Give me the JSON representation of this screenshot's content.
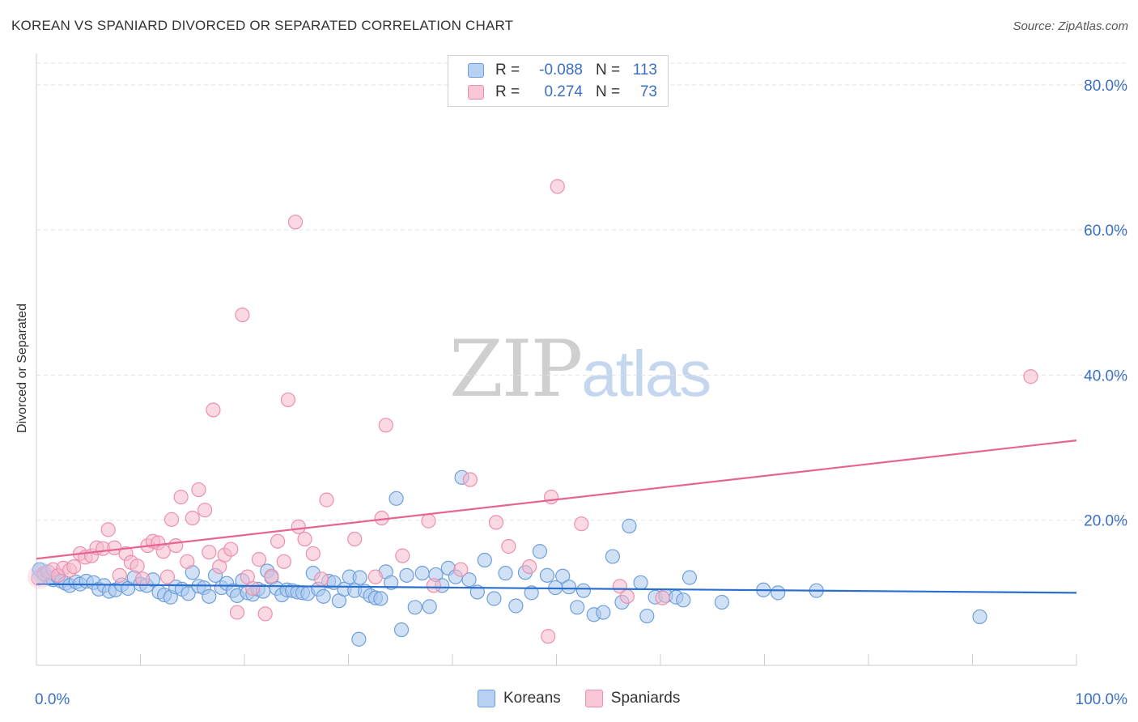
{
  "title": "KOREAN VS SPANIARD DIVORCED OR SEPARATED CORRELATION CHART",
  "source": "Source: ZipAtlas.com",
  "watermark": {
    "part1": "ZIP",
    "part2": "atlas"
  },
  "legend": {
    "rows": [
      {
        "r_label": "R =",
        "r_value": "-0.088",
        "n_label": "N =",
        "n_value": "113"
      },
      {
        "r_label": "R =",
        "r_value": "0.274",
        "n_label": "N =",
        "n_value": "73"
      }
    ]
  },
  "bottom_legend": [
    "Koreans",
    "Spaniards"
  ],
  "colors": {
    "blue_fill": "#a9c8ef",
    "blue_stroke": "#6f9fdb",
    "blue_line": "#2a6fd0",
    "pink_fill": "#f6b9cc",
    "pink_stroke": "#ec8fae",
    "pink_line": "#e56590",
    "axis_label": "#3a6fc4",
    "grid": "#e3e3e3"
  },
  "chart_data": {
    "type": "scatter",
    "title": "KOREAN VS SPANIARD DIVORCED OR SEPARATED CORRELATION CHART",
    "xlabel": "",
    "ylabel": "Divorced or Separated",
    "xlim": [
      0,
      100
    ],
    "ylim": [
      0,
      83
    ],
    "x_tick_labels": [
      "0.0%",
      "100.0%"
    ],
    "y_ticks": [
      20,
      40,
      60,
      80
    ],
    "y_tick_labels": [
      "20.0%",
      "40.0%",
      "60.0%",
      "80.0%"
    ],
    "grid": true,
    "legend_position": "top-center",
    "series": [
      {
        "name": "Koreans",
        "r": -0.088,
        "n": 113,
        "trend": [
          [
            0,
            11.2
          ],
          [
            100,
            10.0
          ]
        ],
        "points": [
          [
            0.3,
            13.2
          ],
          [
            0.8,
            12.5
          ],
          [
            1.2,
            12.0
          ],
          [
            1.6,
            11.8
          ],
          [
            2.0,
            12.3
          ],
          [
            2.4,
            11.6
          ],
          [
            2.8,
            11.3
          ],
          [
            3.2,
            11.0
          ],
          [
            3.8,
            11.5
          ],
          [
            4.2,
            11.2
          ],
          [
            4.8,
            11.6
          ],
          [
            5.5,
            11.4
          ],
          [
            6.0,
            10.5
          ],
          [
            6.5,
            11.0
          ],
          [
            7.0,
            10.2
          ],
          [
            7.6,
            10.4
          ],
          [
            8.2,
            11.1
          ],
          [
            8.8,
            10.6
          ],
          [
            9.4,
            12.1
          ],
          [
            10.0,
            11.2
          ],
          [
            10.6,
            11.0
          ],
          [
            11.2,
            11.8
          ],
          [
            11.8,
            10.1
          ],
          [
            12.3,
            9.7
          ],
          [
            12.9,
            9.4
          ],
          [
            13.4,
            10.8
          ],
          [
            14.0,
            10.5
          ],
          [
            14.6,
            9.9
          ],
          [
            15.0,
            12.8
          ],
          [
            15.6,
            10.9
          ],
          [
            16.1,
            10.7
          ],
          [
            16.6,
            9.5
          ],
          [
            17.2,
            12.4
          ],
          [
            17.8,
            10.7
          ],
          [
            18.3,
            11.3
          ],
          [
            18.9,
            10.3
          ],
          [
            19.3,
            9.6
          ],
          [
            19.8,
            11.7
          ],
          [
            20.3,
            10.0
          ],
          [
            20.8,
            9.8
          ],
          [
            21.3,
            10.5
          ],
          [
            21.8,
            10.2
          ],
          [
            22.2,
            13.0
          ],
          [
            22.6,
            12.1
          ],
          [
            23.1,
            10.6
          ],
          [
            23.6,
            9.7
          ],
          [
            24.1,
            10.4
          ],
          [
            24.6,
            10.3
          ],
          [
            25.1,
            10.1
          ],
          [
            25.6,
            10.0
          ],
          [
            26.1,
            9.9
          ],
          [
            26.6,
            12.7
          ],
          [
            27.1,
            10.5
          ],
          [
            27.6,
            9.5
          ],
          [
            28.1,
            11.6
          ],
          [
            28.6,
            11.4
          ],
          [
            29.1,
            8.9
          ],
          [
            29.6,
            10.5
          ],
          [
            30.1,
            12.2
          ],
          [
            30.6,
            10.3
          ],
          [
            31.1,
            12.1
          ],
          [
            31.6,
            10.2
          ],
          [
            32.1,
            9.6
          ],
          [
            32.6,
            9.3
          ],
          [
            33.1,
            9.2
          ],
          [
            33.6,
            12.9
          ],
          [
            34.1,
            11.4
          ],
          [
            34.6,
            23.0
          ],
          [
            35.1,
            4.9
          ],
          [
            35.6,
            12.4
          ],
          [
            36.4,
            8.0
          ],
          [
            37.1,
            12.7
          ],
          [
            37.8,
            8.1
          ],
          [
            38.4,
            12.5
          ],
          [
            39.0,
            11.0
          ],
          [
            39.6,
            13.4
          ],
          [
            40.3,
            12.2
          ],
          [
            40.9,
            25.9
          ],
          [
            41.6,
            11.8
          ],
          [
            42.4,
            10.1
          ],
          [
            43.1,
            14.5
          ],
          [
            44.0,
            9.2
          ],
          [
            45.1,
            12.7
          ],
          [
            46.1,
            8.2
          ],
          [
            47.0,
            12.8
          ],
          [
            47.6,
            10.0
          ],
          [
            48.4,
            15.7
          ],
          [
            49.1,
            12.4
          ],
          [
            49.9,
            10.7
          ],
          [
            50.6,
            12.3
          ],
          [
            51.2,
            10.8
          ],
          [
            52.0,
            8.0
          ],
          [
            52.6,
            10.3
          ],
          [
            53.6,
            7.0
          ],
          [
            54.5,
            7.3
          ],
          [
            55.4,
            15.0
          ],
          [
            56.3,
            8.7
          ],
          [
            57.0,
            19.2
          ],
          [
            58.1,
            11.4
          ],
          [
            58.7,
            6.8
          ],
          [
            59.5,
            9.4
          ],
          [
            60.5,
            9.6
          ],
          [
            61.5,
            9.4
          ],
          [
            62.2,
            9.0
          ],
          [
            62.8,
            12.1
          ],
          [
            65.9,
            8.7
          ],
          [
            69.9,
            10.4
          ],
          [
            71.3,
            10.0
          ],
          [
            75.0,
            10.3
          ],
          [
            90.7,
            6.7
          ],
          [
            31.0,
            3.6
          ]
        ]
      },
      {
        "name": "Spaniards",
        "r": 0.274,
        "n": 73,
        "trend": [
          [
            0,
            14.7
          ],
          [
            100,
            31.0
          ]
        ],
        "points": [
          [
            0.2,
            12.0
          ],
          [
            0.7,
            12.6
          ],
          [
            1.1,
            12.9
          ],
          [
            1.6,
            13.2
          ],
          [
            2.1,
            12.4
          ],
          [
            2.6,
            13.4
          ],
          [
            3.2,
            13.1
          ],
          [
            3.6,
            13.6
          ],
          [
            4.2,
            15.4
          ],
          [
            4.7,
            14.9
          ],
          [
            5.3,
            15.1
          ],
          [
            5.8,
            16.2
          ],
          [
            6.4,
            16.1
          ],
          [
            6.9,
            18.7
          ],
          [
            7.5,
            16.2
          ],
          [
            8.0,
            12.4
          ],
          [
            8.6,
            15.4
          ],
          [
            9.1,
            14.2
          ],
          [
            9.7,
            13.7
          ],
          [
            10.2,
            11.9
          ],
          [
            10.7,
            16.5
          ],
          [
            11.2,
            17.1
          ],
          [
            11.7,
            16.9
          ],
          [
            12.2,
            15.7
          ],
          [
            12.6,
            12.2
          ],
          [
            13.0,
            20.1
          ],
          [
            13.4,
            16.5
          ],
          [
            13.9,
            23.2
          ],
          [
            14.5,
            14.3
          ],
          [
            15.0,
            20.3
          ],
          [
            15.6,
            24.2
          ],
          [
            16.2,
            21.4
          ],
          [
            16.6,
            15.6
          ],
          [
            17.0,
            35.2
          ],
          [
            17.6,
            13.6
          ],
          [
            18.1,
            15.2
          ],
          [
            18.7,
            16.0
          ],
          [
            19.3,
            7.3
          ],
          [
            19.8,
            48.3
          ],
          [
            20.3,
            12.2
          ],
          [
            20.8,
            10.6
          ],
          [
            21.4,
            14.6
          ],
          [
            22.0,
            7.1
          ],
          [
            22.6,
            12.3
          ],
          [
            23.2,
            17.1
          ],
          [
            23.8,
            14.3
          ],
          [
            24.2,
            36.6
          ],
          [
            24.9,
            61.1
          ],
          [
            25.2,
            19.1
          ],
          [
            25.8,
            17.4
          ],
          [
            26.6,
            15.4
          ],
          [
            27.4,
            11.9
          ],
          [
            27.9,
            22.8
          ],
          [
            30.6,
            17.4
          ],
          [
            32.6,
            12.2
          ],
          [
            33.2,
            20.3
          ],
          [
            33.6,
            33.1
          ],
          [
            35.2,
            15.1
          ],
          [
            37.7,
            19.9
          ],
          [
            38.2,
            11.0
          ],
          [
            40.8,
            13.2
          ],
          [
            41.7,
            25.6
          ],
          [
            44.2,
            19.7
          ],
          [
            45.4,
            16.4
          ],
          [
            47.4,
            13.6
          ],
          [
            49.2,
            4.0
          ],
          [
            49.5,
            23.2
          ],
          [
            50.1,
            66.0
          ],
          [
            52.4,
            19.5
          ],
          [
            56.1,
            10.9
          ],
          [
            56.8,
            9.5
          ],
          [
            60.2,
            9.3
          ],
          [
            95.6,
            39.8
          ]
        ]
      }
    ]
  }
}
